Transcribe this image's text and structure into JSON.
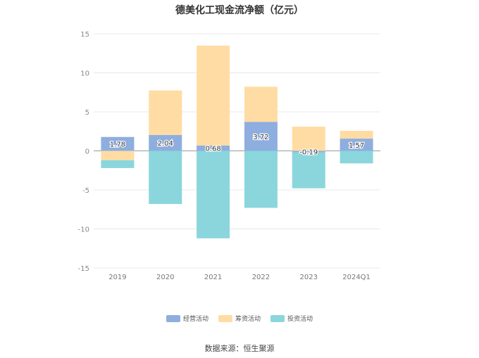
{
  "chart_data": {
    "type": "bar",
    "title": "德美化工现金流净额（亿元）",
    "categories": [
      "2019",
      "2020",
      "2021",
      "2022",
      "2023",
      "2024Q1"
    ],
    "series": [
      {
        "name": "经营活动",
        "color": "#8eaedf",
        "values": [
          1.78,
          2.04,
          0.68,
          3.72,
          -0.19,
          1.57
        ]
      },
      {
        "name": "筹资活动",
        "color": "#ffdca3",
        "values": [
          -1.2,
          5.7,
          12.8,
          4.5,
          3.1,
          1.0
        ]
      },
      {
        "name": "投资活动",
        "color": "#8ad6dc",
        "values": [
          -1.0,
          -6.8,
          -11.2,
          -7.3,
          -4.6,
          -1.6
        ]
      }
    ],
    "data_labels": [
      "1.78",
      "2.04",
      "0.68",
      "3.72",
      "-0.19",
      "1.57"
    ],
    "yticks": [
      "15",
      "10",
      "5",
      "0",
      "-5",
      "-10",
      "-15"
    ],
    "ylim": [
      -15,
      15
    ],
    "legend_position": "bottom",
    "grid": true
  },
  "source": "数据来源：恒生聚源"
}
